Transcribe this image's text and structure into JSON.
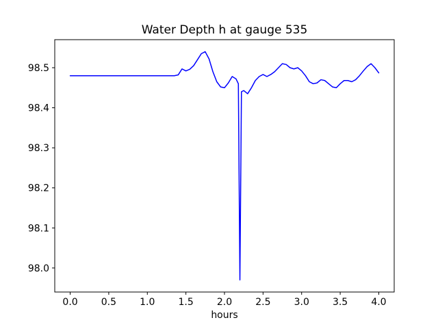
{
  "figure": {
    "background": "#ffffff",
    "frame_color": "#000000"
  },
  "chart_data": {
    "type": "line",
    "title": "Water Depth h at gauge 535",
    "xlabel": "hours",
    "ylabel": "",
    "grid": false,
    "legend": null,
    "line_color": "#0000ff",
    "xlim": [
      -0.2,
      4.2
    ],
    "ylim": [
      97.94,
      98.57
    ],
    "xticks": [
      0.0,
      0.5,
      1.0,
      1.5,
      2.0,
      2.5,
      3.0,
      3.5,
      4.0
    ],
    "xtick_labels": [
      "0.0",
      "0.5",
      "1.0",
      "1.5",
      "2.0",
      "2.5",
      "3.0",
      "3.5",
      "4.0"
    ],
    "yticks": [
      98.0,
      98.1,
      98.2,
      98.3,
      98.4,
      98.5
    ],
    "ytick_labels": [
      "98.0",
      "98.1",
      "98.2",
      "98.3",
      "98.4",
      "98.5"
    ],
    "series": [
      {
        "name": "water-depth-h",
        "x": [
          0.0,
          0.2,
          0.4,
          0.6,
          0.8,
          1.0,
          1.2,
          1.35,
          1.4,
          1.45,
          1.5,
          1.55,
          1.6,
          1.65,
          1.7,
          1.75,
          1.8,
          1.85,
          1.9,
          1.95,
          2.0,
          2.05,
          2.1,
          2.15,
          2.18,
          2.2,
          2.22,
          2.25,
          2.3,
          2.35,
          2.4,
          2.45,
          2.5,
          2.55,
          2.6,
          2.65,
          2.7,
          2.75,
          2.8,
          2.85,
          2.9,
          2.95,
          3.0,
          3.05,
          3.1,
          3.15,
          3.2,
          3.25,
          3.3,
          3.35,
          3.4,
          3.45,
          3.5,
          3.55,
          3.6,
          3.65,
          3.7,
          3.75,
          3.8,
          3.85,
          3.9,
          3.95,
          4.0
        ],
        "y": [
          98.48,
          98.48,
          98.48,
          98.48,
          98.48,
          98.48,
          98.48,
          98.48,
          98.482,
          98.497,
          98.492,
          98.496,
          98.505,
          98.52,
          98.535,
          98.54,
          98.522,
          98.49,
          98.465,
          98.452,
          98.45,
          98.462,
          98.478,
          98.472,
          98.46,
          97.97,
          98.44,
          98.443,
          98.435,
          98.45,
          98.468,
          98.478,
          98.483,
          98.478,
          98.483,
          98.49,
          98.5,
          98.51,
          98.508,
          98.5,
          98.497,
          98.5,
          98.492,
          98.48,
          98.465,
          98.46,
          98.462,
          98.47,
          98.468,
          98.46,
          98.452,
          98.45,
          98.46,
          98.468,
          98.468,
          98.465,
          98.47,
          98.48,
          98.492,
          98.503,
          98.51,
          98.5,
          98.487
        ]
      }
    ]
  }
}
